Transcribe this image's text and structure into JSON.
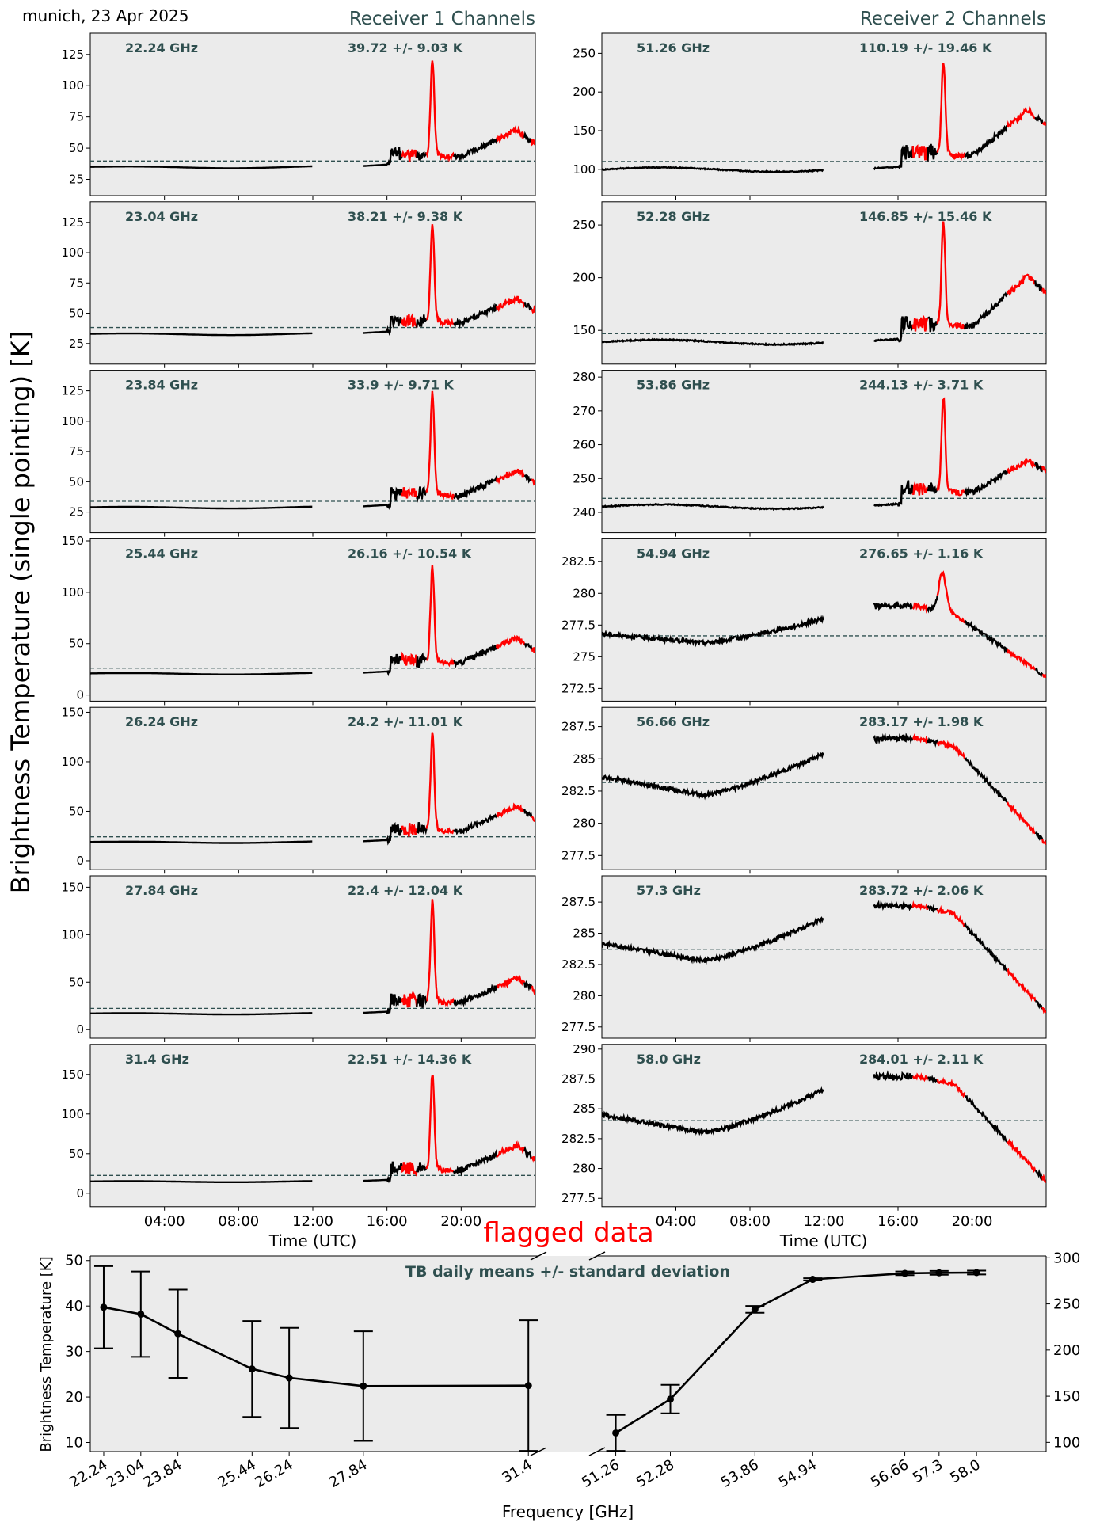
{
  "header": {
    "location_date": "munich, 23 Apr 2025",
    "receiver1_title": "Receiver 1 Channels",
    "receiver2_title": "Receiver 2 Channels"
  },
  "y_axis_label": "Brightness Temperature (single pointing) [K]",
  "time_axis_label": "Time (UTC)",
  "flag_label": "flagged data",
  "colors": {
    "valid": "#000000",
    "flagged": "#ff0000",
    "mean_line": "#2f4f4f",
    "panel_bg": "#ebebeb",
    "annotation": "#2f4f4f"
  },
  "chart_data": [
    {
      "type": "line",
      "receiver": 1,
      "x_ticks": [
        "04:00",
        "08:00",
        "12:00",
        "16:00",
        "20:00"
      ],
      "x_tick_hours": [
        4,
        8,
        12,
        16,
        20
      ],
      "xlim_hours": [
        0,
        24
      ],
      "panels": [
        {
          "freq_label": "22.24 GHz",
          "stat_label": "39.72 +/- 9.03 K",
          "mean": 39.72,
          "ylim": [
            12,
            142
          ],
          "yticks": [
            25,
            50,
            75,
            100,
            125
          ],
          "base": 35,
          "peak": 120,
          "end": 55
        },
        {
          "freq_label": "23.04 GHz",
          "stat_label": "38.21 +/- 9.38 K",
          "mean": 38.21,
          "ylim": [
            8,
            142
          ],
          "yticks": [
            25,
            50,
            75,
            100,
            125
          ],
          "base": 33,
          "peak": 123,
          "end": 52
        },
        {
          "freq_label": "23.84 GHz",
          "stat_label": "33.9 +/- 9.71 K",
          "mean": 33.9,
          "ylim": [
            8,
            142
          ],
          "yticks": [
            25,
            50,
            75,
            100,
            125
          ],
          "base": 29,
          "peak": 124,
          "end": 49
        },
        {
          "freq_label": "25.44 GHz",
          "stat_label": "26.16 +/- 10.54 K",
          "mean": 26.16,
          "ylim": [
            -6,
            152
          ],
          "yticks": [
            0,
            50,
            100,
            150
          ],
          "base": 21,
          "peak": 125,
          "end": 44
        },
        {
          "freq_label": "26.24 GHz",
          "stat_label": "24.2 +/- 11.01 K",
          "mean": 24.2,
          "ylim": [
            -9,
            155
          ],
          "yticks": [
            0,
            50,
            100,
            150
          ],
          "base": 19,
          "peak": 128,
          "end": 43
        },
        {
          "freq_label": "27.84 GHz",
          "stat_label": "22.4 +/- 12.04 K",
          "mean": 22.4,
          "ylim": [
            -9,
            162
          ],
          "yticks": [
            0,
            50,
            100,
            150
          ],
          "base": 17,
          "peak": 135,
          "end": 41
        },
        {
          "freq_label": "31.4 GHz",
          "stat_label": "22.51 +/- 14.36 K",
          "mean": 22.51,
          "ylim": [
            -17,
            188
          ],
          "yticks": [
            0,
            50,
            100,
            150
          ],
          "base": 15,
          "peak": 152,
          "end": 45
        }
      ]
    },
    {
      "type": "line",
      "receiver": 2,
      "x_ticks": [
        "04:00",
        "08:00",
        "12:00",
        "16:00",
        "20:00"
      ],
      "x_tick_hours": [
        4,
        8,
        12,
        16,
        20
      ],
      "xlim_hours": [
        0,
        24
      ],
      "panels": [
        {
          "freq_label": "51.26 GHz",
          "stat_label": "110.19 +/- 19.46 K",
          "mean": 110.19,
          "ylim": [
            66,
            276
          ],
          "yticks": [
            100,
            150,
            200,
            250
          ],
          "base": 101,
          "peak": 240,
          "end": 150
        },
        {
          "freq_label": "52.28 GHz",
          "stat_label": "146.85 +/- 15.46 K",
          "mean": 146.85,
          "ylim": [
            118,
            272
          ],
          "yticks": [
            150,
            200,
            250
          ],
          "base": 140,
          "peak": 253,
          "end": 180
        },
        {
          "freq_label": "53.86 GHz",
          "stat_label": "244.13 +/- 3.71 K",
          "mean": 244.13,
          "ylim": [
            234,
            282
          ],
          "yticks": [
            240,
            250,
            260,
            270,
            280
          ],
          "base": 242,
          "peak": 274,
          "end": 250
        },
        {
          "freq_label": "54.94 GHz",
          "stat_label": "276.65 +/- 1.16 K",
          "mean": 276.65,
          "ylim": [
            271.5,
            284.3
          ],
          "yticks": [
            272.5,
            275.0,
            277.5,
            280.0,
            282.5
          ],
          "start": 276.8,
          "mid": 276.1,
          "noon": 278.0,
          "plateau": 279.0,
          "peak": 282.0,
          "end": 274.0
        },
        {
          "freq_label": "56.66 GHz",
          "stat_label": "283.17 +/- 1.98 K",
          "mean": 283.17,
          "ylim": [
            276.4,
            289.0
          ],
          "yticks": [
            277.5,
            280.0,
            282.5,
            285.0,
            287.5
          ],
          "start": 283.6,
          "mid": 282.2,
          "noon": 285.4,
          "plateau": 286.6,
          "peak": 286.6,
          "end": 279.0
        },
        {
          "freq_label": "57.3 GHz",
          "stat_label": "283.72 +/- 2.06 K",
          "mean": 283.72,
          "ylim": [
            276.6,
            289.6
          ],
          "yticks": [
            277.5,
            280.0,
            282.5,
            285.0,
            287.5
          ],
          "start": 284.2,
          "mid": 282.8,
          "noon": 286.2,
          "plateau": 287.2,
          "peak": 287.2,
          "end": 279.3
        },
        {
          "freq_label": "58.0 GHz",
          "stat_label": "284.01 +/- 2.11 K",
          "mean": 284.01,
          "ylim": [
            276.8,
            290.4
          ],
          "yticks": [
            277.5,
            280.0,
            282.5,
            285.0,
            287.5,
            290.0
          ],
          "start": 284.5,
          "mid": 283.0,
          "noon": 286.6,
          "plateau": 287.7,
          "peak": 287.7,
          "end": 279.5
        }
      ]
    },
    {
      "type": "line",
      "title": "TB daily means +/- standard deviation",
      "xlabel": "Frequency [GHz]",
      "ylabel": "Brightness Temperature [K]",
      "left": {
        "x": [
          22.24,
          23.04,
          23.84,
          25.44,
          26.24,
          27.84,
          31.4
        ],
        "tick_labels": [
          "22.24",
          "23.04",
          "23.84",
          "25.44",
          "26.24",
          "27.84",
          "31.4"
        ],
        "y": [
          39.72,
          38.21,
          33.9,
          26.16,
          24.2,
          22.4,
          22.51
        ],
        "err": [
          9.03,
          9.38,
          9.71,
          10.54,
          11.01,
          12.04,
          14.36
        ],
        "xlim": [
          21.95,
          31.55
        ],
        "ylim": [
          8,
          51
        ],
        "yticks": [
          10,
          20,
          30,
          40,
          50
        ]
      },
      "right": {
        "x": [
          51.26,
          52.28,
          53.86,
          54.94,
          56.66,
          57.3,
          58.0
        ],
        "tick_labels": [
          "51.26",
          "52.28",
          "53.86",
          "54.94",
          "56.66",
          "57.3",
          "58.0"
        ],
        "y": [
          110.19,
          146.85,
          244.13,
          276.65,
          283.17,
          283.72,
          284.01
        ],
        "err": [
          19.46,
          15.46,
          3.71,
          1.16,
          1.98,
          2.06,
          2.11
        ],
        "xlim": [
          51.0,
          59.3
        ],
        "ylim": [
          90,
          302
        ],
        "yticks": [
          100,
          150,
          200,
          250,
          300
        ]
      }
    }
  ]
}
